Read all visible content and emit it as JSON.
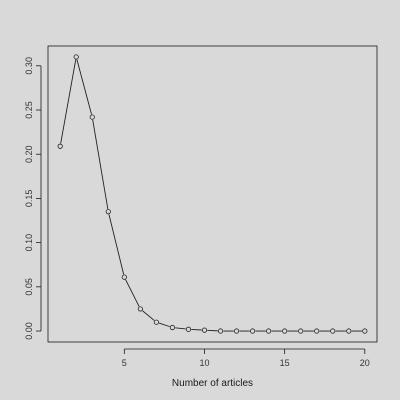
{
  "chart_data": {
    "type": "line",
    "title": "",
    "xlabel": "Number of articles",
    "ylabel": "",
    "xlim": [
      0.24,
      20.76
    ],
    "ylim": [
      -0.0124,
      0.3224
    ],
    "x_ticks": [
      "5",
      "10",
      "15",
      "20"
    ],
    "y_ticks": [
      "0.00",
      "0.05",
      "0.10",
      "0.15",
      "0.20",
      "0.25",
      "0.30"
    ],
    "grid": false,
    "legend": "none",
    "series": [
      {
        "x": [
          1,
          2,
          3,
          4,
          5,
          6,
          7,
          8,
          9,
          10,
          11,
          12,
          13,
          14,
          15,
          16,
          17,
          18,
          19,
          20
        ],
        "values": [
          0.209,
          0.31,
          0.242,
          0.135,
          0.061,
          0.025,
          0.01,
          0.004,
          0.002,
          0.001,
          0.0,
          0.0,
          0.0,
          0.0,
          0.0,
          0.0,
          0.0,
          0.0,
          0.0,
          0.0
        ],
        "markers": "open-circle",
        "color": "#222222"
      }
    ]
  }
}
